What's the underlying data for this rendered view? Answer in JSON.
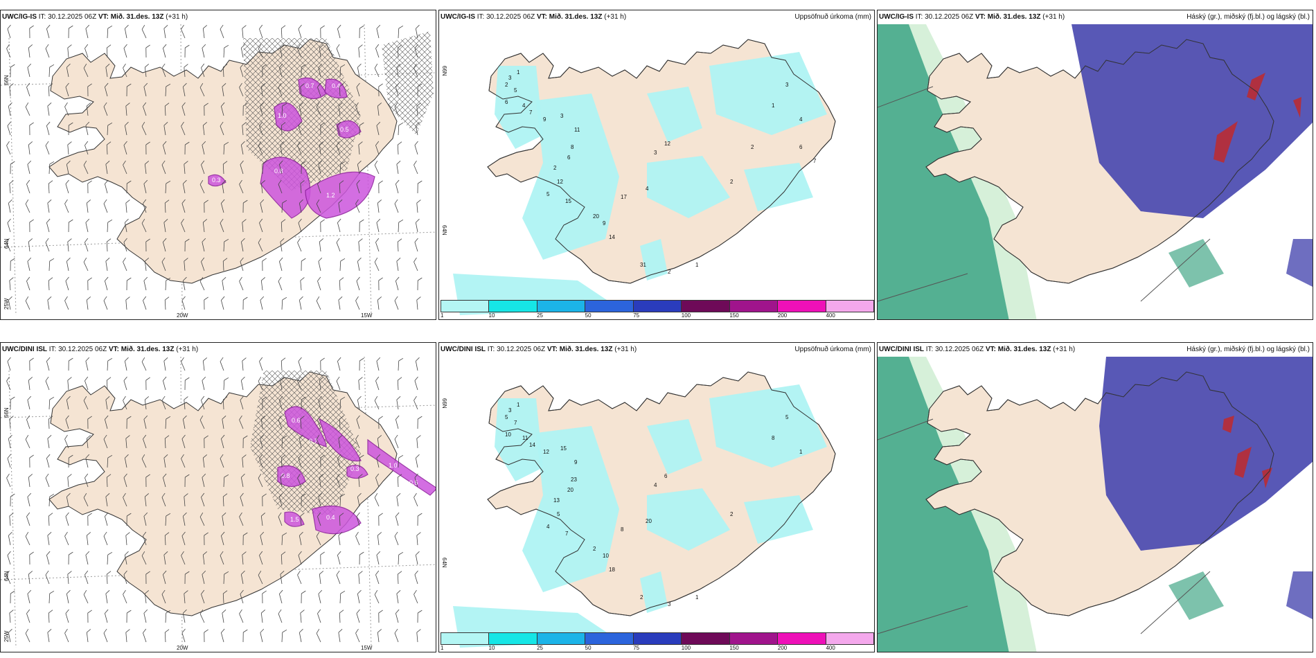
{
  "rows": [
    {
      "model": "UWC/IG-IS",
      "it_label": "IT:",
      "it_value": "30.12.2025 06Z",
      "vt_label": "VT:",
      "vt_value": "Mið. 31.des. 13Z",
      "lead": "(+31 h)"
    },
    {
      "model": "UWC/DINI ISL",
      "it_label": "IT:",
      "it_value": "30.12.2025 06Z",
      "vt_label": "VT:",
      "vt_value": "Mið. 31.des. 13Z",
      "lead": "(+31 h)"
    }
  ],
  "precip_title": "Uppsöfnuð úrkoma (mm)",
  "cloud_title": "Háský (gr.), miðský (fj.bl.) og lágský (bl.)",
  "lat_labels": {
    "n66": "66N",
    "n64": "64N"
  },
  "lon_labels": {
    "w25": "25W",
    "w20": "20W",
    "w15": "15W"
  },
  "legend": {
    "ticks": [
      "1",
      "10",
      "25",
      "50",
      "75",
      "100",
      "150",
      "200",
      "400"
    ],
    "colors": [
      "#b4f6f4",
      "#16e6e6",
      "#1cb4e8",
      "#2c64dc",
      "#2a3cbc",
      "#6e0a58",
      "#a0148c",
      "#ee10b8",
      "#f4a8ec"
    ]
  },
  "colors": {
    "land": "#f5e4d3",
    "precip_fill": "#aff3f3",
    "snow_fill": "#cc55dd",
    "high_cloud": "#4a4ab0",
    "mid_cloud": "#46a889",
    "low_cloud": "#b03040"
  },
  "precip_top_values": [
    "3",
    "1",
    "2",
    "5",
    "6",
    "4",
    "7",
    "9",
    "3",
    "11",
    "8",
    "6",
    "2",
    "12",
    "5",
    "15",
    "20",
    "17",
    "9",
    "14",
    "4",
    "3",
    "12",
    "31",
    "2",
    "1",
    "2",
    "3",
    "1",
    "4",
    "6",
    "7",
    "2"
  ],
  "precip_bottom_values": [
    "3",
    "1",
    "5",
    "7",
    "10",
    "11",
    "14",
    "12",
    "15",
    "9",
    "23",
    "20",
    "13",
    "5",
    "4",
    "7",
    "2",
    "8",
    "10",
    "18",
    "20",
    "4",
    "6",
    "2",
    "3",
    "1",
    "2",
    "5",
    "8",
    "1"
  ],
  "snow_top_values": [
    "1.0",
    "0.7",
    "0.4",
    "0.8",
    "1.2",
    "0.3",
    "0.5"
  ],
  "snow_bottom_values": [
    "0.6",
    "0.7",
    "1.0",
    "0.8",
    "0.4",
    "1.5",
    "0.3",
    "0.5"
  ]
}
